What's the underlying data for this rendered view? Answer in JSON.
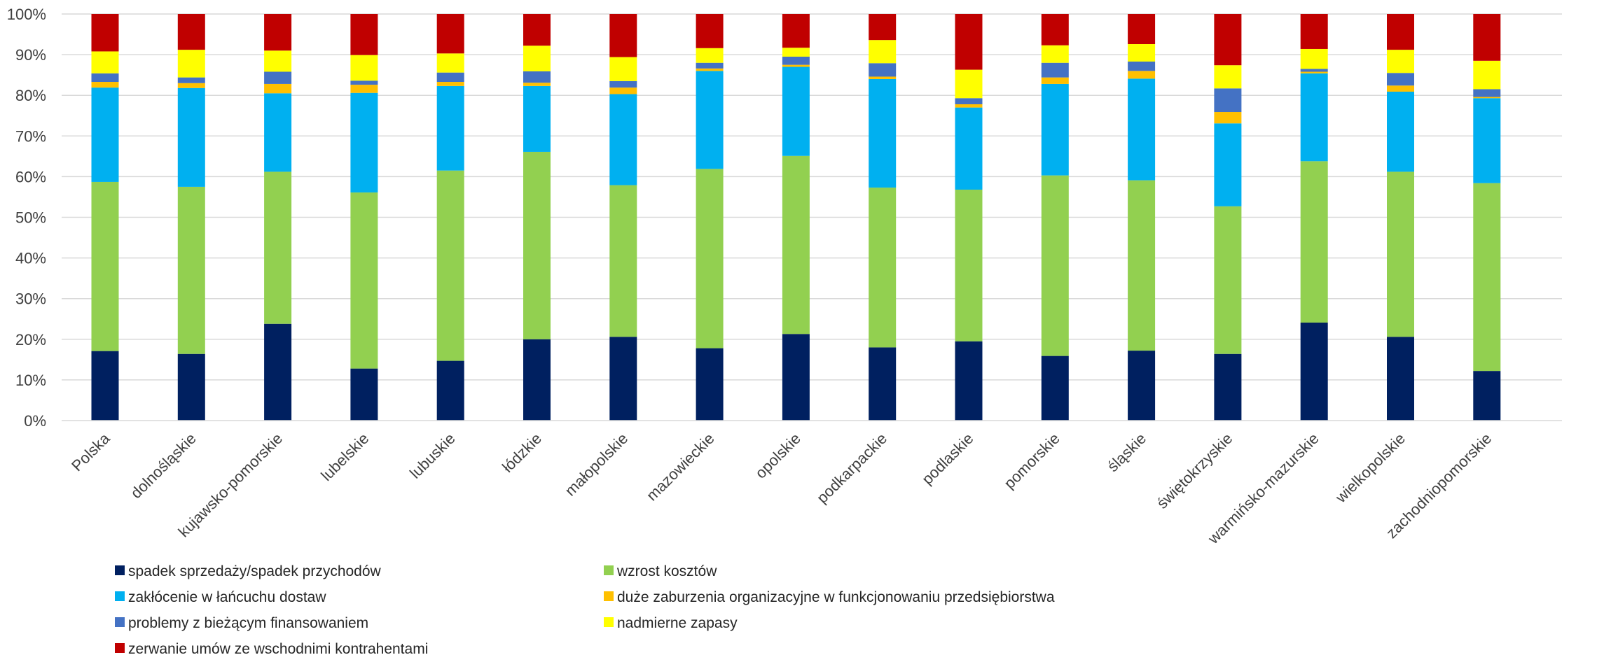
{
  "chart_data": {
    "type": "bar",
    "stacked": true,
    "normalized": true,
    "ylim": [
      0,
      100
    ],
    "y_ticks": [
      "0%",
      "10%",
      "20%",
      "30%",
      "40%",
      "50%",
      "60%",
      "70%",
      "80%",
      "90%",
      "100%"
    ],
    "grid": true,
    "legend_position": "bottom",
    "categories": [
      "Polska",
      "dolnośląskie",
      "kujawsko-pomorskie",
      "lubelskie",
      "lubuskie",
      "łódzkie",
      "małopolskie",
      "mazowieckie",
      "opolskie",
      "podkarpackie",
      "podlaskie",
      "pomorskie",
      "śląskie",
      "świętokrzyskie",
      "warmińsko-mazurskie",
      "wielkopolskie",
      "zachodniopomorskie"
    ],
    "series": [
      {
        "name": "spadek sprzedaży/spadek przychodów",
        "color": "#002060",
        "values": [
          17.1,
          16.4,
          23.8,
          12.8,
          14.7,
          20.0,
          20.6,
          17.8,
          21.3,
          18.0,
          19.5,
          15.9,
          17.2,
          16.4,
          24.1,
          20.6,
          12.2
        ]
      },
      {
        "name": "wzrost kosztów",
        "color": "#92D050",
        "values": [
          41.6,
          41.1,
          37.4,
          43.3,
          46.8,
          46.1,
          37.3,
          44.1,
          43.8,
          39.3,
          37.3,
          44.4,
          41.9,
          36.3,
          39.7,
          40.6,
          46.2
        ]
      },
      {
        "name": "zakłócenie w łańcuchu dostaw",
        "color": "#00B0F0",
        "values": [
          23.2,
          24.3,
          19.3,
          24.5,
          20.8,
          16.2,
          22.4,
          24.1,
          21.9,
          26.7,
          20.2,
          22.5,
          25.0,
          20.4,
          21.6,
          19.7,
          20.9
        ]
      },
      {
        "name": "duże zaburzenia organizacyjne w funkcjonowaniu przedsiębiorstwa",
        "color": "#FFC000",
        "values": [
          1.4,
          1.2,
          2.3,
          2.0,
          1.0,
          0.8,
          1.6,
          0.6,
          0.5,
          0.6,
          0.8,
          1.6,
          1.9,
          2.8,
          0.4,
          1.5,
          0.3
        ]
      },
      {
        "name": "problemy z bieżącym finansowaniem",
        "color": "#4472C4",
        "values": [
          2.1,
          1.4,
          3.0,
          1.0,
          2.3,
          2.8,
          1.6,
          1.4,
          2.0,
          3.3,
          1.5,
          3.6,
          2.3,
          5.8,
          0.7,
          3.1,
          1.9
        ]
      },
      {
        "name": "nadmierne zapasy",
        "color": "#FFFF00",
        "values": [
          5.4,
          6.8,
          5.2,
          6.3,
          4.7,
          6.3,
          5.9,
          3.6,
          2.2,
          5.7,
          7.0,
          4.3,
          4.3,
          5.7,
          4.9,
          5.7,
          7.0
        ]
      },
      {
        "name": "zerwanie umów ze wschodnimi kontrahentami",
        "color": "#C00000",
        "values": [
          9.2,
          8.8,
          9.0,
          10.1,
          9.7,
          7.8,
          10.6,
          8.4,
          8.3,
          6.4,
          13.7,
          7.7,
          7.4,
          12.6,
          8.6,
          8.8,
          11.5
        ]
      }
    ]
  }
}
